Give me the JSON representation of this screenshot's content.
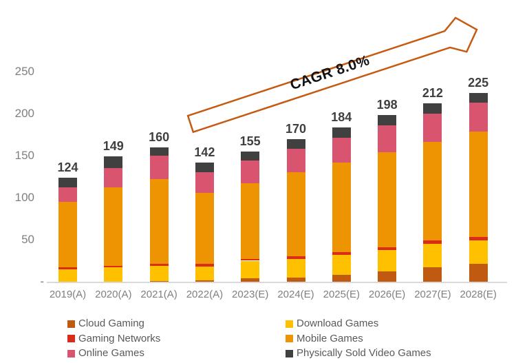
{
  "chart_data": {
    "type": "bar",
    "stacked": true,
    "title": "",
    "categories": [
      "2019(A)",
      "2020(A)",
      "2021(A)",
      "2022(A)",
      "2023(E)",
      "2024(E)",
      "2025(E)",
      "2026(E)",
      "2027(E)",
      "2028(E)"
    ],
    "totals": [
      124,
      149,
      160,
      142,
      155,
      170,
      184,
      198,
      212,
      225
    ],
    "series": [
      {
        "name": "Cloud Gaming",
        "color": "#C05A11",
        "values": [
          0,
          0,
          1,
          2,
          4,
          5,
          8,
          12,
          17,
          21
        ]
      },
      {
        "name": "Download Games",
        "color": "#FFC000",
        "values": [
          15,
          17,
          18,
          16,
          21,
          22,
          24,
          26,
          28,
          28
        ]
      },
      {
        "name": "Gaming Networks",
        "color": "#DB2B19",
        "values": [
          2,
          2,
          2,
          3,
          2,
          3,
          3,
          3,
          4,
          4
        ]
      },
      {
        "name": "Mobile Games",
        "color": "#EE9302",
        "values": [
          78,
          93,
          101,
          85,
          90,
          100,
          107,
          113,
          117,
          126
        ]
      },
      {
        "name": "Online Games",
        "color": "#D9546E",
        "values": [
          17,
          23,
          28,
          24,
          27,
          28,
          29,
          32,
          34,
          34
        ]
      },
      {
        "name": "Physically Sold Video Games",
        "color": "#404040",
        "values": [
          12,
          14,
          10,
          12,
          11,
          12,
          13,
          12,
          12,
          12
        ]
      }
    ],
    "y_axis": {
      "ticks": [
        {
          "label": "250",
          "value": 250
        },
        {
          "label": "200",
          "value": 200
        },
        {
          "label": "150",
          "value": 150
        },
        {
          "label": "100",
          "value": 100
        },
        {
          "label": "50",
          "value": 50
        },
        {
          "label": "-",
          "value": 0
        }
      ],
      "max": 250
    },
    "legend_position": "bottom",
    "legend_columns": [
      [
        0,
        2,
        4
      ],
      [
        1,
        3,
        5
      ]
    ],
    "grid": false,
    "annotation": {
      "text": "CAGR 8.0%",
      "arrow_color": "#C55A11"
    }
  }
}
